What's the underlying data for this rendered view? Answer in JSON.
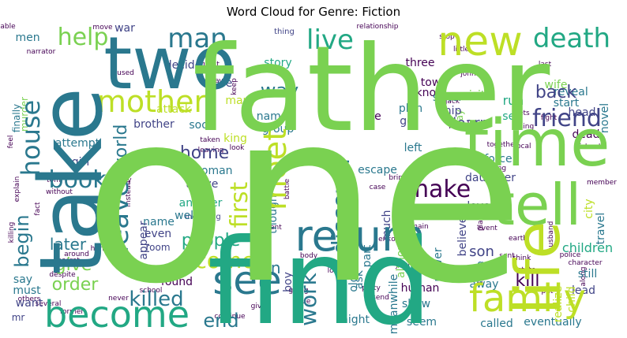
{
  "chart_data": {
    "type": "wordcloud",
    "title": "Word Cloud for Genre: Fiction",
    "colormap": "viridis",
    "background": "#ffffff",
    "words": [
      {
        "text": "one",
        "weight": 1.0,
        "color": "#7ad151"
      },
      {
        "text": "father",
        "weight": 0.78,
        "color": "#7ad151"
      },
      {
        "text": "find",
        "weight": 0.7,
        "color": "#22a884"
      },
      {
        "text": "take",
        "weight": 0.52,
        "color": "#2a788e"
      },
      {
        "text": "two",
        "weight": 0.36,
        "color": "#2a788e"
      },
      {
        "text": "time",
        "weight": 0.32,
        "color": "#7ad151"
      },
      {
        "text": "tell",
        "weight": 0.3,
        "color": "#7ad151"
      },
      {
        "text": "life",
        "weight": 0.3,
        "color": "#bddf26"
      },
      {
        "text": "new",
        "weight": 0.24,
        "color": "#bddf26"
      },
      {
        "text": "return",
        "weight": 0.24,
        "color": "#2a788e"
      },
      {
        "text": "death",
        "weight": 0.18,
        "color": "#22a884"
      },
      {
        "text": "family",
        "weight": 0.2,
        "color": "#bddf26"
      },
      {
        "text": "become",
        "weight": 0.19,
        "color": "#22a884"
      },
      {
        "text": "see",
        "weight": 0.2,
        "color": "#2a788e"
      },
      {
        "text": "mother",
        "weight": 0.16,
        "color": "#bddf26"
      },
      {
        "text": "house",
        "weight": 0.16,
        "color": "#2a788e"
      },
      {
        "text": "meet",
        "weight": 0.16,
        "color": "#bddf26"
      },
      {
        "text": "man",
        "weight": 0.14,
        "color": "#2a788e"
      },
      {
        "text": "live",
        "weight": 0.14,
        "color": "#22a884"
      },
      {
        "text": "help",
        "weight": 0.13,
        "color": "#7ad151"
      },
      {
        "text": "friend",
        "weight": 0.13,
        "color": "#414487"
      },
      {
        "text": "leave",
        "weight": 0.13,
        "color": "#2a788e"
      },
      {
        "text": "discover",
        "weight": 0.12,
        "color": "#2a788e"
      },
      {
        "text": "first",
        "weight": 0.12,
        "color": "#bddf26"
      },
      {
        "text": "make",
        "weight": 0.12,
        "color": "#440154"
      },
      {
        "text": "book",
        "weight": 0.12,
        "color": "#2a788e"
      },
      {
        "text": "come",
        "weight": 0.12,
        "color": "#bddf26"
      },
      {
        "text": "world",
        "weight": 0.1,
        "color": "#2a788e"
      },
      {
        "text": "begin",
        "weight": 0.1,
        "color": "#2a788e"
      },
      {
        "text": "work",
        "weight": 0.1,
        "color": "#2a788e"
      },
      {
        "text": "killed",
        "weight": 0.09,
        "color": "#2a788e"
      },
      {
        "text": "end",
        "weight": 0.09,
        "color": "#2a788e"
      },
      {
        "text": "back",
        "weight": 0.09,
        "color": "#414487"
      },
      {
        "text": "way",
        "weight": 0.09,
        "color": "#2a788e"
      },
      {
        "text": "give",
        "weight": 0.08,
        "color": "#7ad151"
      },
      {
        "text": "people",
        "weight": 0.08,
        "color": "#22a884"
      },
      {
        "text": "home",
        "weight": 0.08,
        "color": "#414487"
      },
      {
        "text": "turn",
        "weight": 0.08,
        "color": "#2a788e"
      },
      {
        "text": "later",
        "weight": 0.07,
        "color": "#2a788e"
      },
      {
        "text": "order",
        "weight": 0.07,
        "color": "#7ad151"
      },
      {
        "text": "learn",
        "weight": 0.07,
        "color": "#414487"
      },
      {
        "text": "son",
        "weight": 0.07,
        "color": "#414487"
      },
      {
        "text": "kill",
        "weight": 0.07,
        "color": "#440154"
      },
      {
        "text": "children",
        "weight": 0.06,
        "color": "#22a884"
      },
      {
        "text": "although",
        "weight": 0.05,
        "color": "#7ad151"
      },
      {
        "text": "decide",
        "weight": 0.04,
        "color": "#414487"
      },
      {
        "text": "story",
        "weight": 0.04,
        "color": "#22a884"
      },
      {
        "text": "three",
        "weight": 0.04,
        "color": "#440154"
      },
      {
        "text": "town",
        "weight": 0.04,
        "color": "#440154"
      },
      {
        "text": "know",
        "weight": 0.04,
        "color": "#440154"
      },
      {
        "text": "visit",
        "weight": 0.04,
        "color": "#7ad151"
      },
      {
        "text": "run",
        "weight": 0.04,
        "color": "#22a884"
      },
      {
        "text": "set",
        "weight": 0.04,
        "color": "#22a884"
      },
      {
        "text": "reveal",
        "weight": 0.04,
        "color": "#2a788e"
      },
      {
        "text": "start",
        "weight": 0.04,
        "color": "#2a788e"
      },
      {
        "text": "head",
        "weight": 0.04,
        "color": "#414487"
      },
      {
        "text": "dead",
        "weight": 0.04,
        "color": "#440154"
      },
      {
        "text": "plan",
        "weight": 0.04,
        "color": "#2a788e"
      },
      {
        "text": "go",
        "weight": 0.04,
        "color": "#414487"
      },
      {
        "text": "named",
        "weight": 0.04,
        "color": "#2a788e"
      },
      {
        "text": "group",
        "weight": 0.04,
        "color": "#2a788e"
      },
      {
        "text": "attack",
        "weight": 0.04,
        "color": "#bddf26"
      },
      {
        "text": "brother",
        "weight": 0.04,
        "color": "#414487"
      },
      {
        "text": "murder",
        "weight": 0.03,
        "color": "#7ad151"
      },
      {
        "text": "attempt",
        "weight": 0.04,
        "color": "#2a788e"
      },
      {
        "text": "girl",
        "weight": 0.04,
        "color": "#414487"
      },
      {
        "text": "sister",
        "weight": 0.04,
        "color": "#2a788e"
      },
      {
        "text": "ship",
        "weight": 0.04,
        "color": "#414487"
      },
      {
        "text": "made",
        "weight": 0.04,
        "color": "#440154"
      },
      {
        "text": "wife",
        "weight": 0.04,
        "color": "#7ad151"
      },
      {
        "text": "many",
        "weight": 0.04,
        "color": "#bddf26"
      },
      {
        "text": "soon",
        "weight": 0.04,
        "color": "#2a788e"
      },
      {
        "text": "king",
        "weight": 0.04,
        "color": "#bddf26"
      },
      {
        "text": "woman",
        "weight": 0.04,
        "color": "#2a788e"
      },
      {
        "text": "arrive",
        "weight": 0.04,
        "color": "#414487"
      },
      {
        "text": "another",
        "weight": 0.04,
        "color": "#22a884"
      },
      {
        "text": "well",
        "weight": 0.04,
        "color": "#2a788e"
      },
      {
        "text": "die",
        "weight": 0.04,
        "color": "#440154"
      },
      {
        "text": "left",
        "weight": 0.04,
        "color": "#2a788e"
      },
      {
        "text": "escape",
        "weight": 0.04,
        "color": "#2a788e"
      },
      {
        "text": "force",
        "weight": 0.04,
        "color": "#2a788e"
      },
      {
        "text": "daughter",
        "weight": 0.04,
        "color": "#414487"
      },
      {
        "text": "name",
        "weight": 0.04,
        "color": "#2a788e"
      },
      {
        "text": "even",
        "weight": 0.04,
        "color": "#414487"
      },
      {
        "text": "room",
        "weight": 0.03,
        "color": "#414487"
      },
      {
        "text": "call",
        "weight": 0.04,
        "color": "#414487"
      },
      {
        "text": "found",
        "weight": 0.04,
        "color": "#440154"
      },
      {
        "text": "love",
        "weight": 0.04,
        "color": "#414487"
      },
      {
        "text": "say",
        "weight": 0.04,
        "color": "#2a788e"
      },
      {
        "text": "must",
        "weight": 0.04,
        "color": "#2a788e"
      },
      {
        "text": "want",
        "weight": 0.04,
        "color": "#414487"
      },
      {
        "text": "men",
        "weight": 0.04,
        "color": "#2a788e"
      },
      {
        "text": "mr",
        "weight": 0.03,
        "color": "#414487"
      },
      {
        "text": "war",
        "weight": 0.04,
        "color": "#414487"
      },
      {
        "text": "use",
        "weight": 0.04,
        "color": "#414487"
      },
      {
        "text": "still",
        "weight": 0.04,
        "color": "#2a788e"
      },
      {
        "text": "lead",
        "weight": 0.04,
        "color": "#414487"
      },
      {
        "text": "goe",
        "weight": 0.04,
        "color": "#2a788e"
      },
      {
        "text": "human",
        "weight": 0.04,
        "color": "#440154"
      },
      {
        "text": "show",
        "weight": 0.04,
        "color": "#2a788e"
      },
      {
        "text": "away",
        "weight": 0.04,
        "color": "#2a788e"
      },
      {
        "text": "night",
        "weight": 0.04,
        "color": "#2a788e"
      },
      {
        "text": "seem",
        "weight": 0.04,
        "color": "#2a788e"
      },
      {
        "text": "called",
        "weight": 0.04,
        "color": "#2a788e"
      },
      {
        "text": "eventually",
        "weight": 0.04,
        "color": "#2a788e"
      },
      {
        "text": "old",
        "weight": 0.04,
        "color": "#2a788e"
      },
      {
        "text": "boy",
        "weight": 0.04,
        "color": "#414487"
      },
      {
        "text": "much",
        "weight": 0.04,
        "color": "#414487"
      },
      {
        "text": "ask",
        "weight": 0.04,
        "color": "#2a788e"
      },
      {
        "text": "part",
        "weight": 0.04,
        "color": "#2a788e"
      },
      {
        "text": "though",
        "weight": 0.04,
        "color": "#2a788e"
      },
      {
        "text": "believe",
        "weight": 0.04,
        "color": "#414487"
      },
      {
        "text": "meanwhile",
        "weight": 0.04,
        "color": "#2a788e"
      },
      {
        "text": "realize",
        "weight": 0.04,
        "color": "#bddf26"
      },
      {
        "text": "travel",
        "weight": 0.04,
        "color": "#2a788e"
      },
      {
        "text": "city",
        "weight": 0.04,
        "color": "#bddf26"
      },
      {
        "text": "child",
        "weight": 0.04,
        "color": "#bddf26"
      },
      {
        "text": "power",
        "weight": 0.04,
        "color": "#2a788e"
      },
      {
        "text": "appear",
        "weight": 0.04,
        "color": "#414487"
      },
      {
        "text": "novel",
        "weight": 0.04,
        "color": "#2a788e"
      },
      {
        "text": "finally",
        "weight": 0.03,
        "color": "#2a788e"
      },
      {
        "text": "day",
        "weight": 0.03,
        "color": "#7ad151"
      },
      {
        "text": "thing",
        "weight": 0.03,
        "color": "#414487"
      },
      {
        "text": "including",
        "weight": 0.03,
        "color": "#414487"
      },
      {
        "text": "relationship",
        "weight": 0.02,
        "color": "#440154"
      },
      {
        "text": "narrator",
        "weight": 0.02,
        "color": "#440154"
      },
      {
        "text": "able",
        "weight": 0.02,
        "color": "#440154"
      },
      {
        "text": "move",
        "weight": 0.02,
        "color": "#440154"
      },
      {
        "text": "stop",
        "weight": 0.02,
        "color": "#440154"
      },
      {
        "text": "last",
        "weight": 0.02,
        "color": "#440154"
      },
      {
        "text": "john",
        "weight": 0.02,
        "color": "#440154"
      },
      {
        "text": "island",
        "weight": 0.02,
        "color": "#440154"
      },
      {
        "text": "member",
        "weight": 0.02,
        "color": "#440154"
      },
      {
        "text": "police",
        "weight": 0.02,
        "color": "#440154"
      },
      {
        "text": "character",
        "weight": 0.02,
        "color": "#440154"
      },
      {
        "text": "think",
        "weight": 0.02,
        "color": "#440154"
      },
      {
        "text": "state",
        "weight": 0.02,
        "color": "#440154"
      },
      {
        "text": "tries",
        "weight": 0.02,
        "color": "#440154"
      },
      {
        "text": "local",
        "weight": 0.02,
        "color": "#440154"
      },
      {
        "text": "husband",
        "weight": 0.02,
        "color": "#440154"
      },
      {
        "text": "fight",
        "weight": 0.02,
        "color": "#440154"
      },
      {
        "text": "together",
        "weight": 0.02,
        "color": "#440154"
      },
      {
        "text": "living",
        "weight": 0.02,
        "color": "#440154"
      },
      {
        "text": "put",
        "weight": 0.02,
        "color": "#440154"
      },
      {
        "text": "along",
        "weight": 0.02,
        "color": "#440154"
      },
      {
        "text": "earth",
        "weight": 0.02,
        "color": "#440154"
      },
      {
        "text": "sent",
        "weight": 0.02,
        "color": "#440154"
      },
      {
        "text": "follow",
        "weight": 0.02,
        "color": "#440154"
      },
      {
        "text": "encounter",
        "weight": 0.02,
        "color": "#440154"
      },
      {
        "text": "remain",
        "weight": 0.02,
        "color": "#440154"
      },
      {
        "text": "known",
        "weight": 0.02,
        "color": "#440154"
      },
      {
        "text": "young",
        "weight": 0.02,
        "color": "#440154"
      },
      {
        "text": "party",
        "weight": 0.02,
        "color": "#440154"
      },
      {
        "text": "due",
        "weight": 0.02,
        "color": "#440154"
      },
      {
        "text": "send",
        "weight": 0.02,
        "color": "#440154"
      },
      {
        "text": "going",
        "weight": 0.02,
        "color": "#440154"
      },
      {
        "text": "body",
        "weight": 0.02,
        "color": "#440154"
      },
      {
        "text": "past",
        "weight": 0.02,
        "color": "#440154"
      },
      {
        "text": "parent",
        "weight": 0.02,
        "color": "#440154"
      },
      {
        "text": "battle",
        "weight": 0.02,
        "color": "#440154"
      },
      {
        "text": "case",
        "weight": 0.02,
        "color": "#440154"
      },
      {
        "text": "bring",
        "weight": 0.02,
        "color": "#440154"
      },
      {
        "text": "taken",
        "weight": 0.02,
        "color": "#440154"
      },
      {
        "text": "leaving",
        "weight": 0.02,
        "color": "#440154"
      },
      {
        "text": "look",
        "weight": 0.02,
        "color": "#440154"
      },
      {
        "text": "stay",
        "weight": 0.02,
        "color": "#440154"
      },
      {
        "text": "land",
        "weight": 0.02,
        "color": "#440154"
      },
      {
        "text": "tom",
        "weight": 0.02,
        "color": "#440154"
      },
      {
        "text": "without",
        "weight": 0.02,
        "color": "#440154"
      },
      {
        "text": "explain",
        "weight": 0.02,
        "color": "#440154"
      },
      {
        "text": "feel",
        "weight": 0.02,
        "color": "#440154"
      },
      {
        "text": "killing",
        "weight": 0.02,
        "color": "#440154"
      },
      {
        "text": "secret",
        "weight": 0.02,
        "color": "#440154"
      },
      {
        "text": "around",
        "weight": 0.02,
        "color": "#440154"
      },
      {
        "text": "hand",
        "weight": 0.02,
        "color": "#440154"
      },
      {
        "text": "despite",
        "weight": 0.02,
        "color": "#440154"
      },
      {
        "text": "others",
        "weight": 0.02,
        "color": "#440154"
      },
      {
        "text": "never",
        "weight": 0.02,
        "color": "#440154"
      },
      {
        "text": "several",
        "weight": 0.02,
        "color": "#440154"
      },
      {
        "text": "former",
        "weight": 0.02,
        "color": "#440154"
      },
      {
        "text": "given",
        "weight": 0.02,
        "color": "#440154"
      },
      {
        "text": "continue",
        "weight": 0.02,
        "color": "#440154"
      },
      {
        "text": "school",
        "weight": 0.02,
        "color": "#440154"
      },
      {
        "text": "money",
        "weight": 0.02,
        "color": "#440154"
      },
      {
        "text": "great",
        "weight": 0.02,
        "color": "#440154"
      },
      {
        "text": "keep",
        "weight": 0.02,
        "color": "#440154"
      },
      {
        "text": "used",
        "weight": 0.02,
        "color": "#440154"
      },
      {
        "text": "instead",
        "weight": 0.02,
        "color": "#440154"
      },
      {
        "text": "fact",
        "weight": 0.02,
        "color": "#440154"
      },
      {
        "text": "gets",
        "weight": 0.02,
        "color": "#440154"
      },
      {
        "text": "little",
        "weight": 0.02,
        "color": "#440154"
      },
      {
        "text": "jack",
        "weight": 0.02,
        "color": "#440154"
      },
      {
        "text": "using",
        "weight": 0.02,
        "color": "#440154"
      },
      {
        "text": "place",
        "weight": 0.02,
        "color": "#440154"
      },
      {
        "text": "event",
        "weight": 0.02,
        "color": "#440154"
      },
      {
        "text": "london",
        "weight": 0.02,
        "color": "#440154"
      },
      {
        "text": "form",
        "weight": 0.02,
        "color": "#440154"
      },
      {
        "text": "planet",
        "weight": 0.02,
        "color": "#440154"
      },
      {
        "text": "long",
        "weight": 0.02,
        "color": "#440154"
      }
    ]
  }
}
